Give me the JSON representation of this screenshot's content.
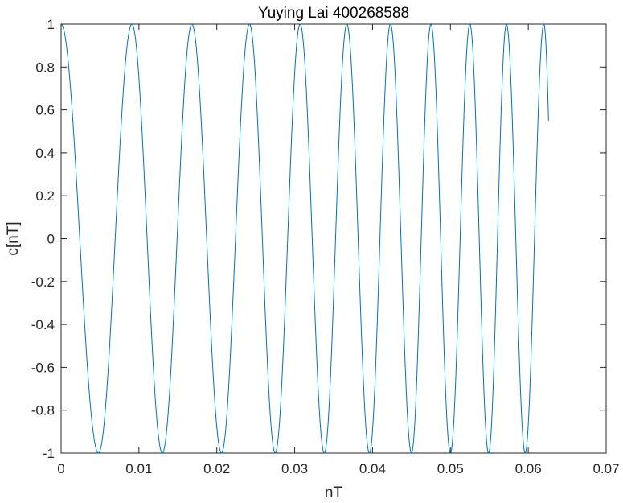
{
  "chart_data": {
    "type": "line",
    "title": "Yuying Lai 400268588",
    "xlabel": "nT",
    "ylabel": "c[nT]",
    "xlim": [
      0,
      0.07
    ],
    "ylim": [
      -1,
      1
    ],
    "x_ticks": [
      0,
      0.01,
      0.02,
      0.03,
      0.04,
      0.05,
      0.06,
      0.07
    ],
    "x_tick_labels": [
      "0",
      "0.01",
      "0.02",
      "0.03",
      "0.04",
      "0.05",
      "0.06",
      "0.07"
    ],
    "y_ticks": [
      -1,
      -0.8,
      -0.6,
      -0.4,
      -0.2,
      0,
      0.2,
      0.4,
      0.6,
      0.8,
      1
    ],
    "y_tick_labels": [
      "-1",
      "-0.8",
      "-0.6",
      "-0.4",
      "-0.2",
      "0",
      "0.2",
      "0.4",
      "0.6",
      "0.8",
      "1"
    ],
    "grid": false,
    "box": true,
    "series": [
      {
        "color": "#0072BD",
        "x_range": [
          0,
          0.0626
        ],
        "peaks_x": [
          0,
          0.0091,
          0.0168,
          0.0242,
          0.0307,
          0.0367,
          0.0423,
          0.0475,
          0.0525,
          0.0572,
          0.062
        ],
        "troughs_x": [
          0.0048,
          0.013,
          0.0206,
          0.0275,
          0.0338,
          0.0396,
          0.045,
          0.05,
          0.0549,
          0.0596
        ],
        "end_value": 0.55
      }
    ]
  }
}
